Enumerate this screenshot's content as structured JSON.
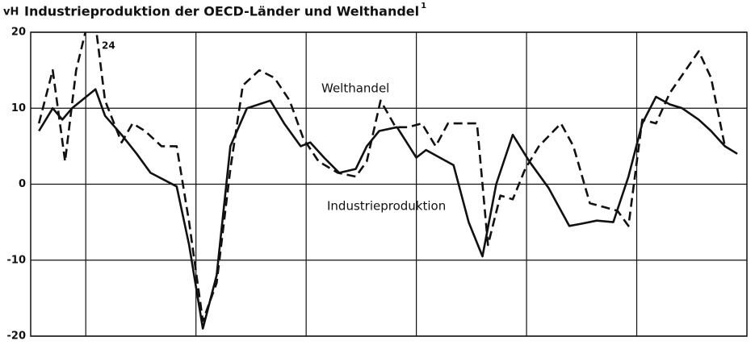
{
  "chart_data": {
    "type": "line",
    "title": "Industrieproduktion der OECD-Länder und Welthandel",
    "title_note": "1",
    "y_label": "vH",
    "annotations": [
      "24",
      "Welthandel",
      "Industrieproduktion"
    ],
    "xlim": [
      0,
      52
    ],
    "xticks": [
      4,
      12,
      20,
      28,
      36,
      44
    ],
    "ylim": [
      -20,
      20
    ],
    "yticks": [
      -20,
      -10,
      0,
      10,
      20
    ],
    "grid": true,
    "series": [
      {
        "name": "Industrieproduktion",
        "color": "#111111",
        "dash": false,
        "x": [
          0.6,
          1.6,
          2.3,
          3.0,
          4.7,
          5.4,
          6.6,
          7.7,
          8.7,
          10.6,
          11.5,
          12.5,
          13.5,
          14.5,
          15.7,
          17.4,
          18.4,
          19.6,
          20.3,
          21.3,
          22.4,
          23.6,
          24.4,
          25.3,
          26.6,
          28.0,
          28.7,
          29.7,
          30.7,
          31.8,
          32.8,
          33.8,
          35.0,
          36.2,
          37.6,
          39.1,
          40.0,
          41.1,
          42.3,
          43.4,
          44.4,
          45.4,
          46.4,
          47.3,
          48.5,
          49.4,
          50.4,
          51.3
        ],
        "values": [
          7,
          10,
          8.5,
          10,
          12.5,
          9,
          6.5,
          4,
          1.5,
          -0.3,
          -8,
          -19,
          -12,
          5,
          10,
          11,
          8,
          5,
          5.5,
          3.5,
          1.5,
          2,
          5,
          7,
          7.5,
          3.5,
          4.5,
          3.5,
          2.5,
          -5,
          -9.5,
          0,
          6.5,
          3,
          -0.5,
          -5.5,
          -5.2,
          -4.8,
          -5,
          1,
          8,
          11.5,
          10.5,
          10,
          8.5,
          7,
          5,
          4
        ]
      },
      {
        "name": "Welthandel",
        "color": "#111111",
        "dash": true,
        "x": [
          0.6,
          1.6,
          2.5,
          3.3,
          4.5,
          5.4,
          6.6,
          7.4,
          8.3,
          9.5,
          10.6,
          11.5,
          12.5,
          13.5,
          14.5,
          15.4,
          16.6,
          17.7,
          18.8,
          19.8,
          20.9,
          22.3,
          23.6,
          24.4,
          25.4,
          26.5,
          27.4,
          28.4,
          29.4,
          30.3,
          31.2,
          32.4,
          33.2,
          34.1,
          35.0,
          35.9,
          36.9,
          38.5,
          39.4,
          40.6,
          41.6,
          42.6,
          43.4,
          44.4,
          45.4,
          46.4,
          48.5,
          49.4,
          50.4
        ],
        "values": [
          8,
          15,
          3,
          15,
          24,
          11,
          5.5,
          8,
          7,
          5,
          5,
          -5,
          -18,
          -13,
          2,
          13,
          15,
          14,
          11,
          6,
          3,
          1.5,
          1,
          3,
          11,
          7.5,
          7.5,
          8,
          5,
          8,
          8,
          8,
          -8,
          -1.5,
          -2,
          2,
          5,
          8,
          5,
          -2.5,
          -3,
          -3.5,
          -5.5,
          8.5,
          8,
          12,
          17.5,
          14,
          5
        ]
      }
    ]
  }
}
